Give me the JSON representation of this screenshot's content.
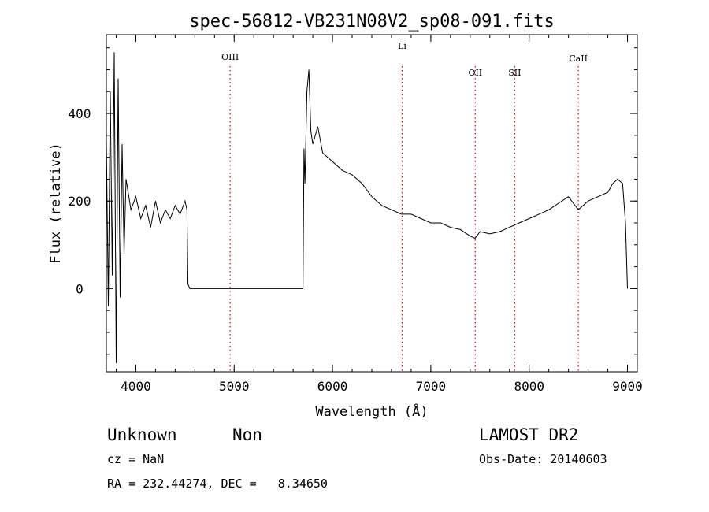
{
  "chart_data": {
    "type": "line",
    "title": "spec-56812-VB231N08V2_sp08-091.fits",
    "xlabel": "Wavelength (Å)",
    "ylabel": "Flux (relative)",
    "xlim": [
      3700,
      9100
    ],
    "ylim": [
      -190,
      580
    ],
    "x_ticks": [
      4000,
      5000,
      6000,
      7000,
      8000,
      9000
    ],
    "y_ticks": [
      0,
      200,
      400
    ],
    "grid": false,
    "line_color": "#000000",
    "marker_color": "#cc0000",
    "line_markers": [
      {
        "label": "OIII",
        "x": 4959
      },
      {
        "label": "Li",
        "x": 6708
      },
      {
        "label": "OII",
        "x": 7452
      },
      {
        "label": "SII",
        "x": 7853
      },
      {
        "label": "CaII",
        "x": 8500
      }
    ],
    "series": [
      {
        "x": [
          3700,
          3720,
          3740,
          3760,
          3780,
          3800,
          3820,
          3840,
          3860,
          3880,
          3900,
          3950,
          4000,
          4050,
          4100,
          4150,
          4200,
          4250,
          4300,
          4350,
          4400,
          4450,
          4500,
          4520,
          4530,
          4550,
          5000,
          5500,
          5700,
          5710,
          5720,
          5740,
          5760,
          5780,
          5800,
          5850,
          5900,
          6000,
          6100,
          6200,
          6300,
          6400,
          6500,
          6600,
          6700,
          6800,
          6900,
          7000,
          7100,
          7200,
          7300,
          7400,
          7450,
          7500,
          7600,
          7700,
          7800,
          7900,
          8000,
          8100,
          8200,
          8300,
          8400,
          8500,
          8600,
          8700,
          8800,
          8850,
          8900,
          8950,
          8980,
          9000
        ],
        "y": [
          340,
          -40,
          450,
          30,
          540,
          -170,
          480,
          -20,
          330,
          80,
          250,
          180,
          210,
          160,
          190,
          140,
          200,
          150,
          180,
          160,
          190,
          170,
          200,
          180,
          10,
          0,
          0,
          0,
          0,
          320,
          240,
          450,
          500,
          360,
          330,
          370,
          310,
          290,
          270,
          260,
          240,
          210,
          190,
          180,
          170,
          170,
          160,
          150,
          150,
          140,
          135,
          120,
          115,
          130,
          125,
          130,
          140,
          150,
          160,
          170,
          180,
          195,
          210,
          180,
          200,
          210,
          220,
          240,
          250,
          240,
          150,
          0
        ]
      }
    ]
  },
  "footer": {
    "object_class": "Unknown",
    "subclass": "Non",
    "survey": "LAMOST DR2",
    "cz": "cz = NaN",
    "obs_date": "Obs-Date: 20140603",
    "radec": "RA = 232.44274, DEC =   8.34650"
  }
}
